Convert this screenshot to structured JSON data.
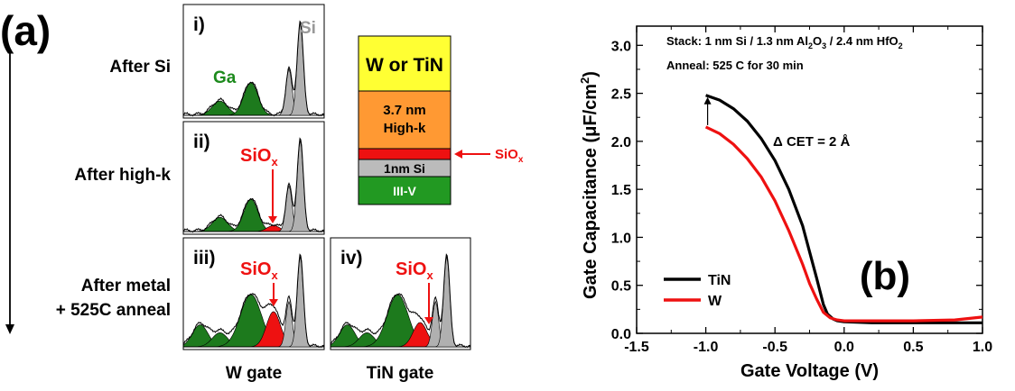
{
  "panel_a": {
    "label": "(a)",
    "rows": [
      {
        "label": "After Si"
      },
      {
        "label": "After high-k"
      },
      {
        "label": "After metal",
        "label2": "+ 525C anneal"
      }
    ],
    "subpanels": [
      "i)",
      "ii)",
      "iii)",
      "iv)"
    ],
    "si_label": "Si",
    "ga_label": "Ga",
    "siox": "SiO",
    "siox_sub": "x",
    "gate_labels": [
      "W gate",
      "TiN gate"
    ],
    "stack_layers": [
      "W or TiN",
      "3.7 nm",
      "High-k",
      "1nm Si",
      "III-V"
    ],
    "stack_colors": {
      "metal": "#ffff33",
      "highk": "#ff9933",
      "siox": "#ee1111",
      "si": "#bbbbbb",
      "iii_v": "#229922"
    },
    "peak_colors": {
      "ga": "#1d7a1d",
      "si": "#b0b0b0",
      "siox": "#ee1111"
    }
  },
  "panel_b": {
    "label": "(b)"
  },
  "chart_data": {
    "type": "line",
    "title": "",
    "xlabel": "Gate Voltage (V)",
    "ylabel_parts": [
      "Gate Capacitance (",
      "μ",
      "F/cm",
      "2",
      ")"
    ],
    "xlim": [
      -1.5,
      1.0
    ],
    "ylim": [
      0.0,
      3.2
    ],
    "xticks": [
      "-1.5",
      "-1.0",
      "-0.5",
      "0.0",
      "0.5",
      "1.0"
    ],
    "yticks": [
      "0.0",
      "0.5",
      "1.0",
      "1.5",
      "2.0",
      "2.5",
      "3.0"
    ],
    "annotation_stack": [
      "Stack: 1 nm Si / 1.3 nm Al",
      "2",
      "O",
      "3",
      " / 2.4 nm HfO",
      "2"
    ],
    "annotation_anneal": "Anneal: 525 C for 30 min",
    "annotation_cet": "Δ CET = 2 Å",
    "legend_position": "bottom-left",
    "series": [
      {
        "name": "TiN",
        "color": "#000000",
        "x": [
          -1.0,
          -0.9,
          -0.8,
          -0.7,
          -0.6,
          -0.5,
          -0.4,
          -0.3,
          -0.25,
          -0.2,
          -0.15,
          -0.12,
          -0.08,
          -0.05,
          0.0,
          0.2,
          0.5,
          0.8,
          1.0
        ],
        "y": [
          2.48,
          2.43,
          2.34,
          2.21,
          2.03,
          1.8,
          1.5,
          1.12,
          0.85,
          0.58,
          0.3,
          0.2,
          0.15,
          0.13,
          0.12,
          0.11,
          0.11,
          0.11,
          0.11
        ]
      },
      {
        "name": "W",
        "color": "#ee1111",
        "x": [
          -1.0,
          -0.9,
          -0.8,
          -0.7,
          -0.6,
          -0.5,
          -0.4,
          -0.3,
          -0.25,
          -0.2,
          -0.15,
          -0.1,
          -0.05,
          0.0,
          0.2,
          0.5,
          0.8,
          1.0
        ],
        "y": [
          2.15,
          2.08,
          1.97,
          1.82,
          1.63,
          1.38,
          1.07,
          0.72,
          0.52,
          0.36,
          0.22,
          0.16,
          0.14,
          0.13,
          0.13,
          0.13,
          0.14,
          0.17
        ]
      }
    ]
  }
}
